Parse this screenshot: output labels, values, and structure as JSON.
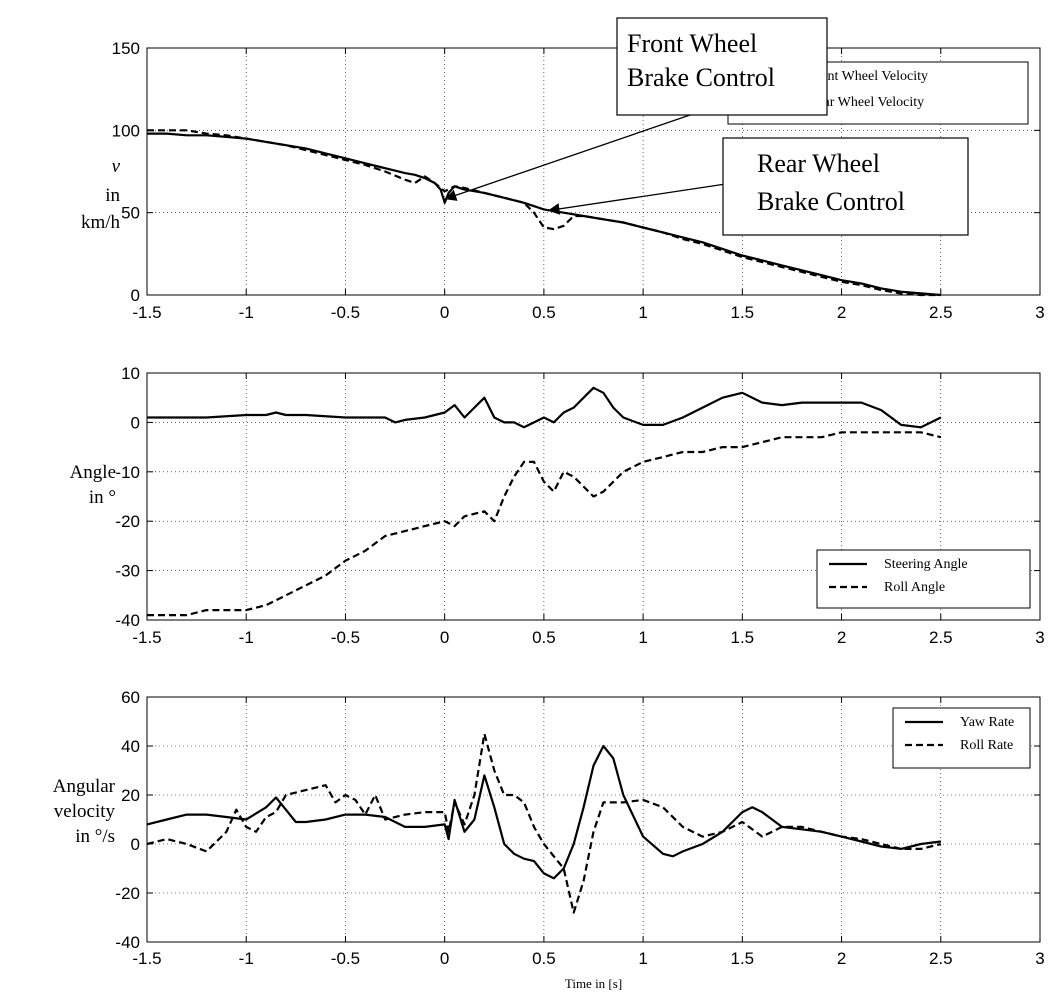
{
  "chart_data": [
    {
      "type": "line",
      "ylabel_lines": [
        "v",
        "in",
        "km/h"
      ],
      "xlim": [
        -1.5,
        3
      ],
      "ylim": [
        0,
        150
      ],
      "xticks": [
        -1.5,
        -1,
        -0.5,
        0,
        0.5,
        1,
        1.5,
        2,
        2.5,
        3
      ],
      "xtick_labels": [
        "-1.5",
        "-1",
        "-0.5",
        "0",
        "0.5",
        "1",
        "1.5",
        "2",
        "2.5",
        "3"
      ],
      "yticks": [
        0,
        50,
        100,
        150
      ],
      "ytick_labels": [
        "0",
        "50",
        "100",
        "150"
      ],
      "grid": true,
      "legend_position": "top-right",
      "series": [
        {
          "name": "Front Wheel Velocity",
          "style": "solid",
          "x": [
            -1.5,
            -1.4,
            -1.3,
            -1.2,
            -1.1,
            -1.0,
            -0.9,
            -0.8,
            -0.7,
            -0.6,
            -0.5,
            -0.4,
            -0.3,
            -0.2,
            -0.15,
            -0.1,
            -0.05,
            -0.02,
            0,
            0.02,
            0.05,
            0.1,
            0.2,
            0.3,
            0.4,
            0.5,
            0.6,
            0.7,
            0.8,
            0.9,
            1.0,
            1.1,
            1.2,
            1.3,
            1.4,
            1.5,
            1.6,
            1.7,
            1.8,
            1.9,
            2.0,
            2.1,
            2.2,
            2.3,
            2.4,
            2.5
          ],
          "y": [
            98,
            98,
            97,
            97,
            96,
            95,
            93,
            91,
            89,
            86,
            83,
            80,
            77,
            74,
            73,
            71,
            68,
            64,
            56,
            62,
            66,
            64,
            62,
            59,
            56,
            52,
            50,
            48,
            46,
            44,
            41,
            38,
            35,
            32,
            28,
            24,
            21,
            18,
            15,
            12,
            9,
            7,
            4,
            2,
            1,
            0
          ]
        },
        {
          "name": "Rear Wheel Velocity",
          "style": "dashed",
          "x": [
            -1.5,
            -1.4,
            -1.3,
            -1.2,
            -1.1,
            -1.0,
            -0.9,
            -0.8,
            -0.7,
            -0.6,
            -0.5,
            -0.4,
            -0.3,
            -0.2,
            -0.15,
            -0.1,
            -0.05,
            0,
            0.05,
            0.1,
            0.2,
            0.3,
            0.4,
            0.45,
            0.5,
            0.55,
            0.6,
            0.65,
            0.7,
            0.8,
            0.9,
            1.0,
            1.1,
            1.2,
            1.3,
            1.4,
            1.5,
            1.6,
            1.7,
            1.8,
            1.9,
            2.0,
            2.1,
            2.2,
            2.3,
            2.4,
            2.5
          ],
          "y": [
            100,
            100,
            100,
            98,
            97,
            95,
            93,
            91,
            88,
            85,
            82,
            79,
            75,
            70,
            68,
            72,
            68,
            63,
            66,
            65,
            62,
            59,
            56,
            50,
            41,
            40,
            42,
            48,
            48,
            46,
            44,
            41,
            38,
            34,
            31,
            27,
            23,
            20,
            17,
            14,
            11,
            8,
            6,
            3,
            1,
            0,
            0
          ]
        }
      ],
      "legend": [
        "Front Wheel Velocity",
        "Rear Wheel Velocity"
      ],
      "annotations": [
        {
          "lines": [
            "Front Wheel",
            "Brake Control"
          ],
          "target": [
            0,
            57
          ]
        },
        {
          "lines": [
            "Rear Wheel",
            "Brake Control"
          ],
          "target": [
            0.5,
            50
          ]
        }
      ]
    },
    {
      "type": "line",
      "ylabel_lines": [
        "Angle",
        "in °"
      ],
      "xlim": [
        -1.5,
        3
      ],
      "ylim": [
        -40,
        10
      ],
      "xticks": [
        -1.5,
        -1,
        -0.5,
        0,
        0.5,
        1,
        1.5,
        2,
        2.5,
        3
      ],
      "xtick_labels": [
        "-1.5",
        "-1",
        "-0.5",
        "0",
        "0.5",
        "1",
        "1.5",
        "2",
        "2.5",
        "3"
      ],
      "yticks": [
        -40,
        -30,
        -20,
        -10,
        0,
        10
      ],
      "ytick_labels": [
        "-40",
        "-30",
        "-20",
        "-10",
        "0",
        "10"
      ],
      "grid": true,
      "legend_position": "bottom-right",
      "series": [
        {
          "name": "Steering Angle",
          "style": "solid",
          "x": [
            -1.5,
            -1.4,
            -1.3,
            -1.2,
            -1.0,
            -0.9,
            -0.85,
            -0.8,
            -0.7,
            -0.5,
            -0.4,
            -0.3,
            -0.25,
            -0.2,
            -0.1,
            0,
            0.05,
            0.1,
            0.15,
            0.2,
            0.25,
            0.3,
            0.35,
            0.4,
            0.45,
            0.5,
            0.55,
            0.6,
            0.65,
            0.7,
            0.75,
            0.8,
            0.85,
            0.9,
            1.0,
            1.1,
            1.2,
            1.3,
            1.4,
            1.5,
            1.6,
            1.7,
            1.8,
            1.9,
            2.0,
            2.1,
            2.2,
            2.3,
            2.4,
            2.5
          ],
          "y": [
            1,
            1,
            1,
            1,
            1.5,
            1.5,
            2,
            1.5,
            1.5,
            1,
            1,
            1,
            0,
            0.5,
            1,
            2,
            3.5,
            1,
            3,
            5,
            1,
            0,
            0,
            -1,
            0,
            1,
            0,
            2,
            3,
            5,
            7,
            6,
            3,
            1,
            -0.5,
            -0.5,
            1,
            3,
            5,
            6,
            4,
            3.5,
            4,
            4,
            4,
            4,
            2.5,
            -0.5,
            -1,
            1
          ]
        },
        {
          "name": "Roll Angle",
          "style": "dashed",
          "x": [
            -1.5,
            -1.4,
            -1.3,
            -1.2,
            -1.1,
            -1.0,
            -0.9,
            -0.8,
            -0.7,
            -0.6,
            -0.5,
            -0.4,
            -0.3,
            -0.2,
            -0.1,
            0,
            0.05,
            0.1,
            0.2,
            0.25,
            0.3,
            0.35,
            0.4,
            0.45,
            0.5,
            0.55,
            0.6,
            0.65,
            0.7,
            0.75,
            0.8,
            0.9,
            1.0,
            1.1,
            1.2,
            1.3,
            1.4,
            1.5,
            1.6,
            1.7,
            1.8,
            1.9,
            2.0,
            2.1,
            2.2,
            2.3,
            2.4,
            2.5
          ],
          "y": [
            -39,
            -39,
            -39,
            -38,
            -38,
            -38,
            -37,
            -35,
            -33,
            -31,
            -28,
            -26,
            -23,
            -22,
            -21,
            -20,
            -21,
            -19,
            -18,
            -20,
            -15,
            -11,
            -8,
            -8,
            -12,
            -14,
            -10,
            -11,
            -13,
            -15,
            -14,
            -10,
            -8,
            -7,
            -6,
            -6,
            -5,
            -5,
            -4,
            -3,
            -3,
            -3,
            -2,
            -2,
            -2,
            -2,
            -2,
            -3
          ]
        }
      ],
      "legend": [
        "Steering Angle",
        "Roll Angle"
      ]
    },
    {
      "type": "line",
      "ylabel_lines": [
        "Angular",
        "velocity",
        "in °/s"
      ],
      "xlabel": "Time in [s]",
      "xlim": [
        -1.5,
        3
      ],
      "ylim": [
        -40,
        60
      ],
      "xticks": [
        -1.5,
        -1,
        -0.5,
        0,
        0.5,
        1,
        1.5,
        2,
        2.5,
        3
      ],
      "xtick_labels": [
        "-1.5",
        "-1",
        "-0.5",
        "0",
        "0.5",
        "1",
        "1.5",
        "2",
        "2.5",
        "3"
      ],
      "yticks": [
        -40,
        -20,
        0,
        20,
        40,
        60
      ],
      "ytick_labels": [
        "-40",
        "-20",
        "0",
        "20",
        "40",
        "60"
      ],
      "grid": true,
      "legend_position": "top-right",
      "series": [
        {
          "name": "Yaw Rate",
          "style": "solid",
          "x": [
            -1.5,
            -1.4,
            -1.3,
            -1.2,
            -1.1,
            -1.0,
            -0.9,
            -0.85,
            -0.8,
            -0.75,
            -0.7,
            -0.6,
            -0.5,
            -0.4,
            -0.3,
            -0.2,
            -0.1,
            0,
            0.02,
            0.05,
            0.1,
            0.15,
            0.2,
            0.25,
            0.3,
            0.35,
            0.4,
            0.45,
            0.5,
            0.55,
            0.6,
            0.65,
            0.7,
            0.75,
            0.8,
            0.85,
            0.9,
            1.0,
            1.1,
            1.15,
            1.2,
            1.3,
            1.4,
            1.5,
            1.55,
            1.6,
            1.7,
            1.8,
            1.9,
            2.0,
            2.1,
            2.2,
            2.3,
            2.4,
            2.5
          ],
          "y": [
            8,
            10,
            12,
            12,
            11,
            10,
            15,
            19,
            14,
            9,
            9,
            10,
            12,
            12,
            11,
            7,
            7,
            8,
            2,
            18,
            5,
            10,
            28,
            15,
            0,
            -4,
            -6,
            -7,
            -12,
            -14,
            -10,
            0,
            15,
            32,
            40,
            35,
            20,
            3,
            -4,
            -5,
            -3,
            0,
            5,
            13,
            15,
            13,
            7,
            6,
            5,
            3,
            1,
            -1,
            -2,
            0,
            1
          ]
        },
        {
          "name": "Roll Rate",
          "style": "dashed",
          "x": [
            -1.5,
            -1.4,
            -1.3,
            -1.2,
            -1.1,
            -1.05,
            -1.0,
            -0.95,
            -0.9,
            -0.85,
            -0.8,
            -0.7,
            -0.6,
            -0.55,
            -0.5,
            -0.45,
            -0.4,
            -0.35,
            -0.3,
            -0.2,
            -0.1,
            0,
            0.02,
            0.05,
            0.1,
            0.15,
            0.2,
            0.25,
            0.3,
            0.35,
            0.4,
            0.45,
            0.5,
            0.55,
            0.6,
            0.65,
            0.7,
            0.75,
            0.8,
            0.9,
            1.0,
            1.1,
            1.2,
            1.3,
            1.4,
            1.5,
            1.6,
            1.7,
            1.8,
            1.9,
            2.0,
            2.1,
            2.2,
            2.3,
            2.4,
            2.5
          ],
          "y": [
            0,
            2,
            0,
            -3,
            5,
            14,
            7,
            5,
            11,
            13,
            20,
            22,
            24,
            17,
            20,
            18,
            12,
            20,
            10,
            12,
            13,
            13,
            5,
            17,
            8,
            20,
            45,
            30,
            20,
            20,
            17,
            7,
            0,
            -5,
            -10,
            -28,
            -15,
            5,
            17,
            17,
            18,
            15,
            7,
            3,
            5,
            9,
            3,
            7,
            7,
            5,
            3,
            2,
            0,
            -2,
            -2,
            0
          ]
        }
      ],
      "legend": [
        "Yaw Rate",
        "Roll Rate"
      ]
    }
  ]
}
